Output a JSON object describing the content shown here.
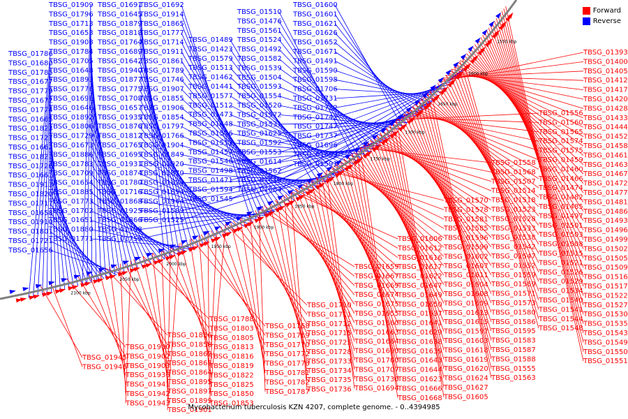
{
  "caption": "Mycobacterium tuberculosis KZN 4207, complete genome. - 0..4394985",
  "legend": {
    "items": [
      {
        "label": "Forward",
        "color": "#ff0000"
      },
      {
        "label": "Reverse",
        "color": "#0000ff"
      }
    ]
  },
  "colors": {
    "forward": "#ff0000",
    "reverse": "#0000ff",
    "backbone": "#808080"
  },
  "scale_labels": [
    "2100 kbp",
    "2050 kbp",
    "2000 kbp",
    "1950 kbp",
    "1900 kbp",
    "1850 kbp",
    "1800 kbp",
    "1750 kbp",
    "1700 kbp",
    "1650 kbp",
    "1600 kbp",
    "1550 kbp"
  ],
  "reverse_labels": [
    "TBSG_01786",
    "TBSG_01680",
    "TBSG_01785",
    "TBSG_01677",
    "TBSG_01779",
    "TBSG_01672",
    "TBSG_01774",
    "TBSG_01665",
    "TBSG_01823",
    "TBSG_01727",
    "TBSG_01662",
    "TBSG_01821",
    "TBSG_01726",
    "TBSG_01661",
    "TBSG_01913",
    "TBSG_01820",
    "TBSG_01717",
    "TBSG_01658",
    "TBSG_01910",
    "TBSG_01801",
    "TBSG_01721",
    "TBSG_01656",
    "TBSG_01909",
    "TBSG_01796",
    "TBSG_01713",
    "TBSG_01653",
    "TBSG_01908",
    "TBSG_01784",
    "TBSG_01705",
    "TBSG_01648",
    "TBSG_01893",
    "TBSG_01776",
    "TBSG_01698",
    "TBSG_01646",
    "TBSG_01892",
    "TBSG_01806",
    "TBSG_01729",
    "TBSG_01673",
    "TBSG_01886",
    "TBSG_01783",
    "TBSG_01709",
    "TBSG_01654",
    "TBSG_01885",
    "TBSG_01773",
    "TBSG_01702",
    "TBSG_01651",
    "TBSG_01880",
    "TBSG_01771",
    "TBSG_01691",
    "TBSG_01645",
    "TBSG_01879",
    "TBSG_01818",
    "TBSG_01764",
    "TBSG_01689",
    "TBSG_01642",
    "TBSG_01940",
    "TBSG_01877",
    "TBSG_01775",
    "TBSG_01708",
    "TBSG_01657",
    "TBSG_01935",
    "TBSG_01876",
    "TBSG_01812",
    "TBSG_01765",
    "TBSG_01695",
    "TBSG_01931",
    "TBSG_01874",
    "TBSG_01780",
    "TBSG_01716",
    "TBSG_01868",
    "TBSG_01925",
    "TBSG_01866",
    "TBSG_01798",
    "TBSG_01755",
    "TBSG_01692",
    "TBSG_01914",
    "TBSG_01865",
    "TBSG_01777",
    "TBSG_01714",
    "TBSG_01911",
    "TBSG_01861",
    "TBSG_01789",
    "TBSG_01746",
    "TBSG_01907",
    "TBSG_01855",
    "TBSG_01906",
    "TBSG_01854",
    "TBSG_01797",
    "TBSG_01766",
    "TBSG_01904",
    "TBSG_01849",
    "TBSG_01920",
    "TBSG_01870",
    "TBSG_01824",
    "TBSG_01894",
    "TBSG_01944",
    "TBSG_01589",
    "TBSG_01525",
    "TBSG_01489",
    "TBSG_01423",
    "TBSG_01579",
    "TBSG_01513",
    "TBSG_01462",
    "TBSG_01441",
    "TBSG_01577",
    "TBSG_01512",
    "TBSG_01473",
    "TBSG_01448",
    "TBSG_01576",
    "TBSG_01511",
    "TBSG_01457",
    "TBSG_01546",
    "TBSG_01498",
    "TBSG_01471",
    "TBSG_01594",
    "TBSG_01545",
    "TBSG_01510",
    "TBSG_01476",
    "TBSG_01561",
    "TBSG_01524",
    "TBSG_01492",
    "TBSG_01582",
    "TBSG_01539",
    "TBSG_01504",
    "TBSG_01593",
    "TBSG_01554",
    "TBSG_01520",
    "TBSG_01572",
    "TBSG_01531",
    "TBSG_01625",
    "TBSG_01592",
    "TBSG_01553",
    "TBSG_01614",
    "TBSG_01562",
    "TBSG_01610",
    "TBSG_01584",
    "TBSG_01600",
    "TBSG_01601",
    "TBSG_01621",
    "TBSG_01626",
    "TBSG_01652",
    "TBSG_01671",
    "TBSG_01491",
    "TBSG_01590",
    "TBSG_01598",
    "TBSG_01706",
    "TBSG_01731",
    "TBSG_01732",
    "TBSG_01742",
    "TBSG_01747",
    "TBSG_01737",
    "TBSG_01696",
    "TBSG_01699",
    "TBSG_01591"
  ],
  "forward_labels": [
    "TBSG_01393",
    "TBSG_01400",
    "TBSG_01405",
    "TBSG_01412",
    "TBSG_01417",
    "TBSG_01420",
    "TBSG_01428",
    "TBSG_01433",
    "TBSG_01444",
    "TBSG_01452",
    "TBSG_01458",
    "TBSG_01461",
    "TBSG_01463",
    "TBSG_01467",
    "TBSG_01472",
    "TBSG_01477",
    "TBSG_01481",
    "TBSG_01486",
    "TBSG_01493",
    "TBSG_01496",
    "TBSG_01499",
    "TBSG_01502",
    "TBSG_01505",
    "TBSG_01509",
    "TBSG_01516",
    "TBSG_01517",
    "TBSG_01522",
    "TBSG_01527",
    "TBSG_01530",
    "TBSG_01535",
    "TBSG_01543",
    "TBSG_01549",
    "TBSG_01550",
    "TBSG_01551",
    "TBSG_01556",
    "TBSG_01560",
    "TBSG_01565",
    "TBSG_01574",
    "TBSG_01575",
    "TBSG_01459",
    "TBSG_01460",
    "TBSG_01466",
    "TBSG_01474",
    "TBSG_01482",
    "TBSG_01485",
    "TBSG_01497",
    "TBSG_01501",
    "TBSG_01503",
    "TBSG_01508",
    "TBSG_01515",
    "TBSG_01521",
    "TBSG_01526",
    "TBSG_01529",
    "TBSG_01534",
    "TBSG_01540",
    "TBSG_01541",
    "TBSG_01544",
    "TBSG_01548",
    "TBSG_01558",
    "TBSG_01568",
    "TBSG_01507",
    "TBSG_01514",
    "TBSG_01518",
    "TBSG_01523",
    "TBSG_01528",
    "TBSG_01533",
    "TBSG_01538",
    "TBSG_01542",
    "TBSG_01547",
    "TBSG_01552",
    "TBSG_01559",
    "TBSG_01569",
    "TBSG_01571",
    "TBSG_01573",
    "TBSG_01580",
    "TBSG_01586",
    "TBSG_01595",
    "TBSG_01583",
    "TBSG_01587",
    "TBSG_01588",
    "TBSG_01555",
    "TBSG_01563",
    "TBSG_01570",
    "TBSG_01578",
    "TBSG_01581",
    "TBSG_01585",
    "TBSG_01596",
    "TBSG_01599",
    "TBSG_01602",
    "TBSG_01607",
    "TBSG_01611",
    "TBSG_01604",
    "TBSG_01608",
    "TBSG_01609",
    "TBSG_01613",
    "TBSG_01615",
    "TBSG_01597",
    "TBSG_01603",
    "TBSG_01618",
    "TBSG_01619",
    "TBSG_01620",
    "TBSG_01624",
    "TBSG_01627",
    "TBSG_01605",
    "TBSG_01606",
    "TBSG_01612",
    "TBSG_01616",
    "TBSG_01617",
    "TBSG_01622",
    "TBSG_01647",
    "TBSG_01649",
    "TBSG_01650",
    "TBSG_01637",
    "TBSG_01641",
    "TBSG_01629",
    "TBSG_01638",
    "TBSG_01639",
    "TBSG_01643",
    "TBSG_01644",
    "TBSG_01623",
    "TBSG_01666",
    "TBSG_01668",
    "TBSG_01659",
    "TBSG_01667",
    "TBSG_01669",
    "TBSG_01674",
    "TBSG_01675",
    "TBSG_01655",
    "TBSG_01660",
    "TBSG_01663",
    "TBSG_01664",
    "TBSG_01690",
    "TBSG_01700",
    "TBSG_01707",
    "TBSG_01730",
    "TBSG_01694",
    "TBSG_01710",
    "TBSG_01711",
    "TBSG_01712",
    "TBSG_01715",
    "TBSG_01725",
    "TBSG_01728",
    "TBSG_01733",
    "TBSG_01734",
    "TBSG_01735",
    "TBSG_01736",
    "TBSG_01768",
    "TBSG_01769",
    "TBSG_01770",
    "TBSG_01772",
    "TBSG_01778",
    "TBSG_01781",
    "TBSG_01782",
    "TBSG_01787",
    "TBSG_01788",
    "TBSG_01803",
    "TBSG_01805",
    "TBSG_01813",
    "TBSG_01816",
    "TBSG_01819",
    "TBSG_01822",
    "TBSG_01825",
    "TBSG_01850",
    "TBSG_01853",
    "TBSG_01856",
    "TBSG_01858",
    "TBSG_01862",
    "TBSG_01863",
    "TBSG_01864",
    "TBSG_01895",
    "TBSG_01897",
    "TBSG_01899",
    "TBSG_01901",
    "TBSG_01900",
    "TBSG_01902",
    "TBSG_01903",
    "TBSG_01936",
    "TBSG_01941",
    "TBSG_01942",
    "TBSG_01943",
    "TBSG_01945",
    "TBSG_01946"
  ]
}
